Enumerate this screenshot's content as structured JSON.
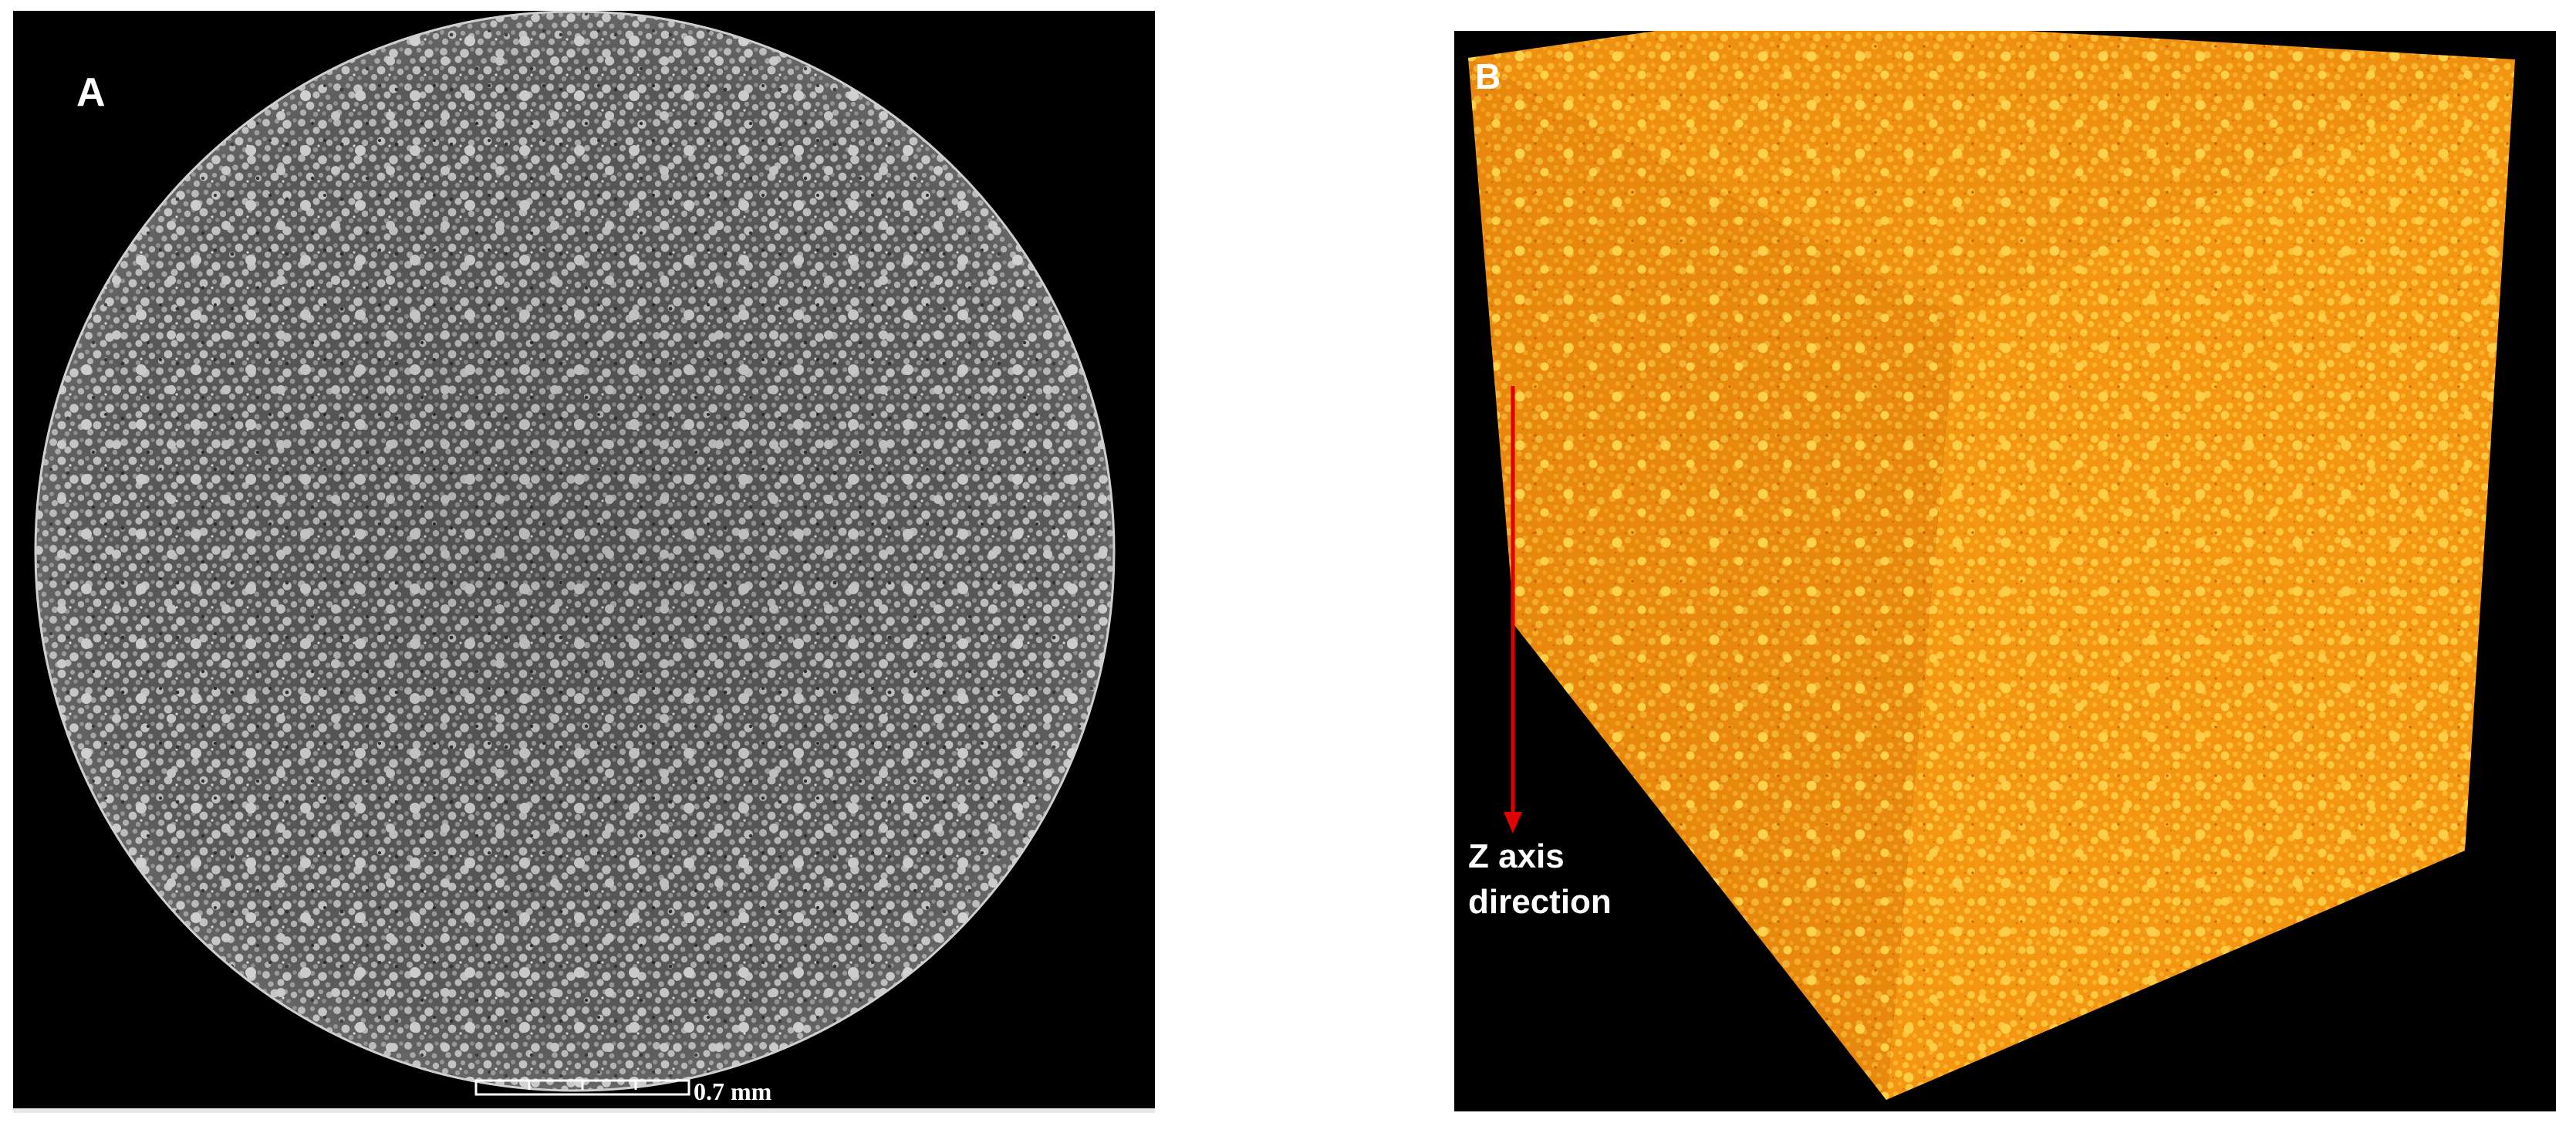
{
  "panel_a": {
    "label": "A",
    "scale_bar_label": "0.7 mm",
    "description_colors": {
      "background": "#000000",
      "disc_base": "#5e5e5e",
      "grain_light": "#c8c8c8",
      "grain_dark": "#2e2e2e"
    }
  },
  "panel_b": {
    "label": "B",
    "axis_label_line1": "Z axis",
    "axis_label_line2": "direction",
    "colors": {
      "background": "#000000",
      "cube_top": "#f08c12",
      "cube_front": "#f59a18",
      "cube_side": "#d9770a",
      "grain": "#ffc43a",
      "arrow": "#e00000"
    }
  }
}
